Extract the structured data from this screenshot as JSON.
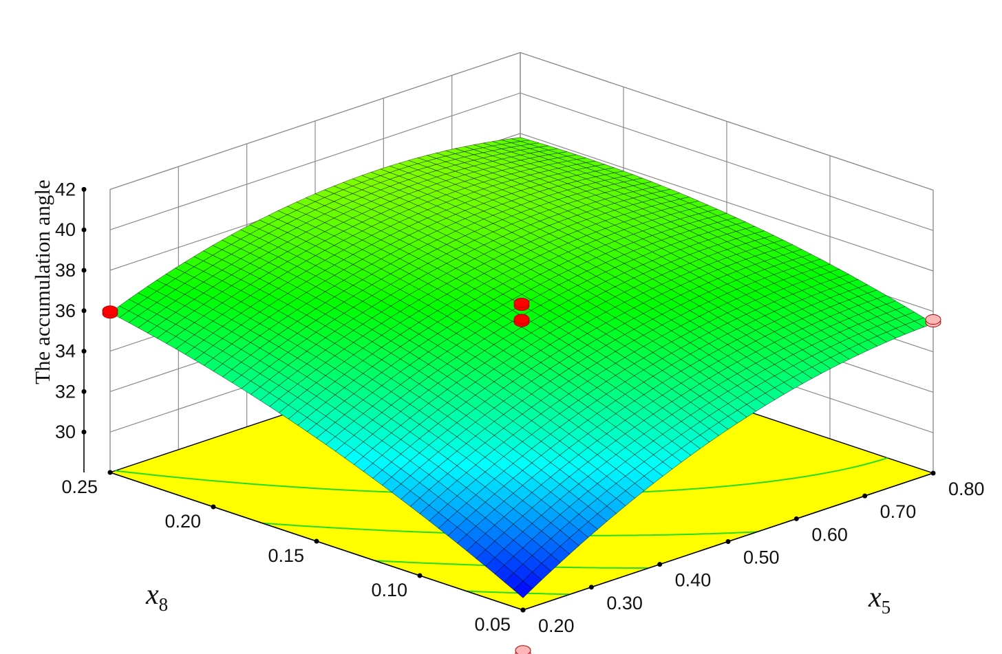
{
  "chart_data": {
    "type": "surface3d",
    "zlabel": "The accumulation angle",
    "xlabel_main": "x",
    "xlabel_sub": "5",
    "ylabel_main": "x",
    "ylabel_sub": "8",
    "x_ticks": [
      "0.20",
      "0.30",
      "0.40",
      "0.50",
      "0.60",
      "0.70",
      "0.80"
    ],
    "y_ticks": [
      "0.05",
      "0.10",
      "0.15",
      "0.20",
      "0.25"
    ],
    "z_ticks": [
      "30",
      "32",
      "34",
      "36",
      "38",
      "40",
      "42"
    ],
    "xlim": [
      0.2,
      0.8
    ],
    "ylim": [
      0.05,
      0.25
    ],
    "zlim": [
      28,
      42
    ],
    "corner_values": [
      {
        "x5": 0.2,
        "x8": 0.05,
        "z": 28.6
      },
      {
        "x5": 0.2,
        "x8": 0.25,
        "z": 35.9
      },
      {
        "x5": 0.8,
        "x8": 0.05,
        "z": 35.4
      },
      {
        "x5": 0.8,
        "x8": 0.25,
        "z": 37.8
      }
    ],
    "design_points": [
      {
        "x5": 0.2,
        "x8": 0.25,
        "z": 36.0,
        "color": "#ff0000"
      },
      {
        "x5": 0.5,
        "x8": 0.15,
        "z": 36.4,
        "color": "#ff0000"
      },
      {
        "x5": 0.5,
        "x8": 0.15,
        "z": 35.6,
        "color": "#ff0000"
      },
      {
        "x5": 0.8,
        "x8": 0.05,
        "z": 35.6,
        "color": "#ffb6b6"
      },
      {
        "x5": 0.2,
        "x8": 0.05,
        "z": 26.0,
        "color": "#ffb6b6"
      }
    ],
    "floor_color": "#ffff00",
    "colormap": [
      "#0000ff",
      "#00ffff",
      "#00ff00",
      "#ffff00"
    ]
  }
}
